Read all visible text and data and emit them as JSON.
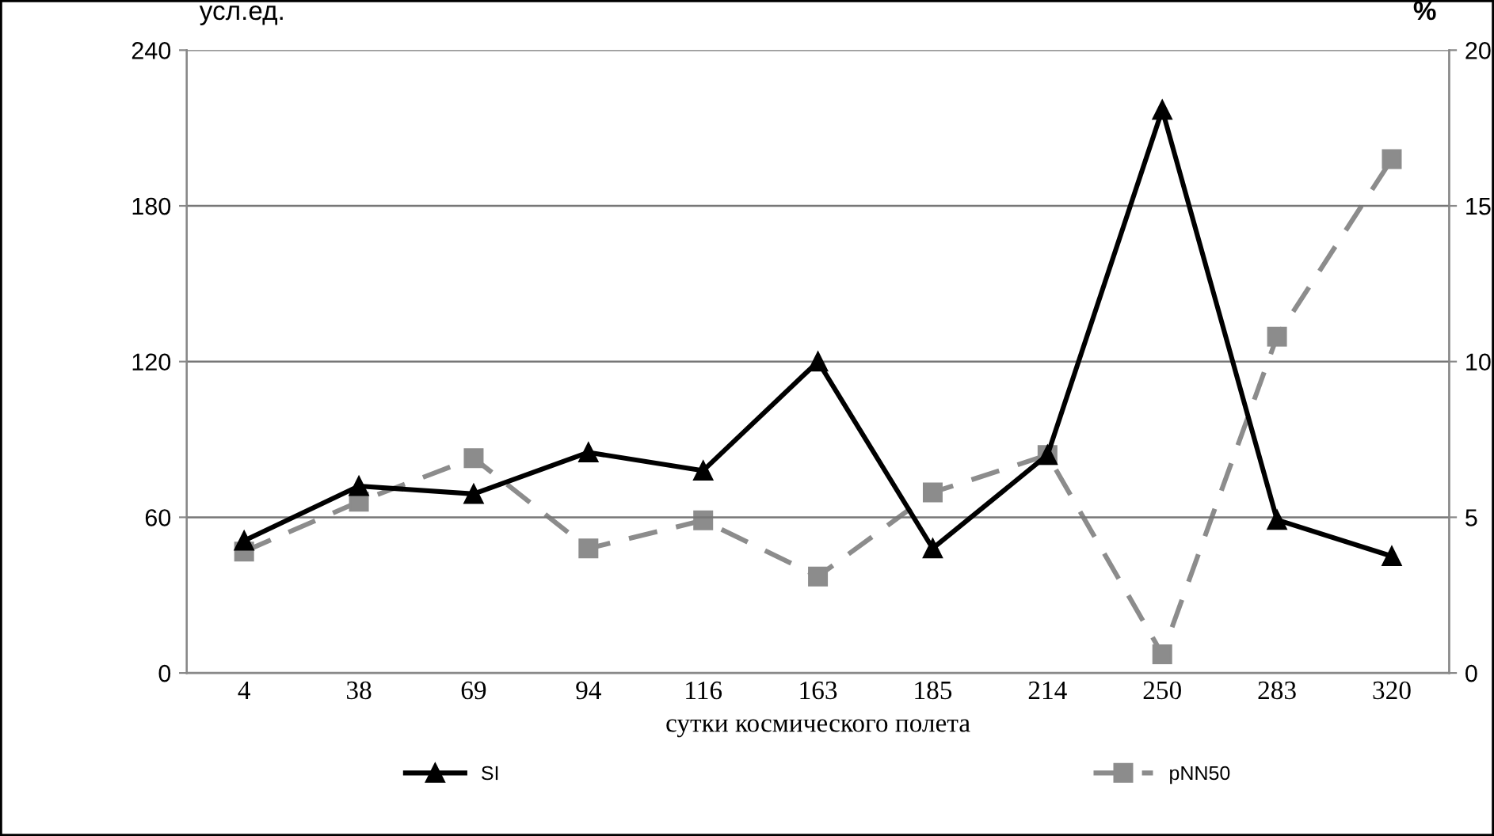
{
  "chart_data": {
    "type": "line",
    "xlabel": "сутки космического полета",
    "ylabel": "усл.ед.",
    "y2label": "%",
    "categories": [
      "4",
      "38",
      "69",
      "94",
      "116",
      "163",
      "185",
      "214",
      "250",
      "283",
      "320"
    ],
    "series": [
      {
        "name": "SI",
        "color": "#000000",
        "marker": "triangle",
        "line_style": "solid",
        "values": [
          51,
          72,
          69,
          85,
          78,
          120,
          48,
          84,
          217,
          59,
          45
        ]
      },
      {
        "name": "pNN50",
        "color": "#8c8c8c",
        "marker": "square",
        "line_style": "dashed",
        "axis": "y2",
        "values": [
          3.9,
          5.5,
          6.9,
          4.0,
          4.9,
          3.1,
          5.8,
          7.0,
          0.6,
          10.8,
          16.5
        ]
      }
    ],
    "ylim": [
      0,
      240
    ],
    "yticks": [
      0,
      60,
      120,
      180,
      240
    ],
    "y2lim": [
      0,
      20
    ],
    "y2ticks": [
      0,
      5,
      10,
      15,
      20
    ],
    "grid": "y",
    "legend": "bottom"
  }
}
